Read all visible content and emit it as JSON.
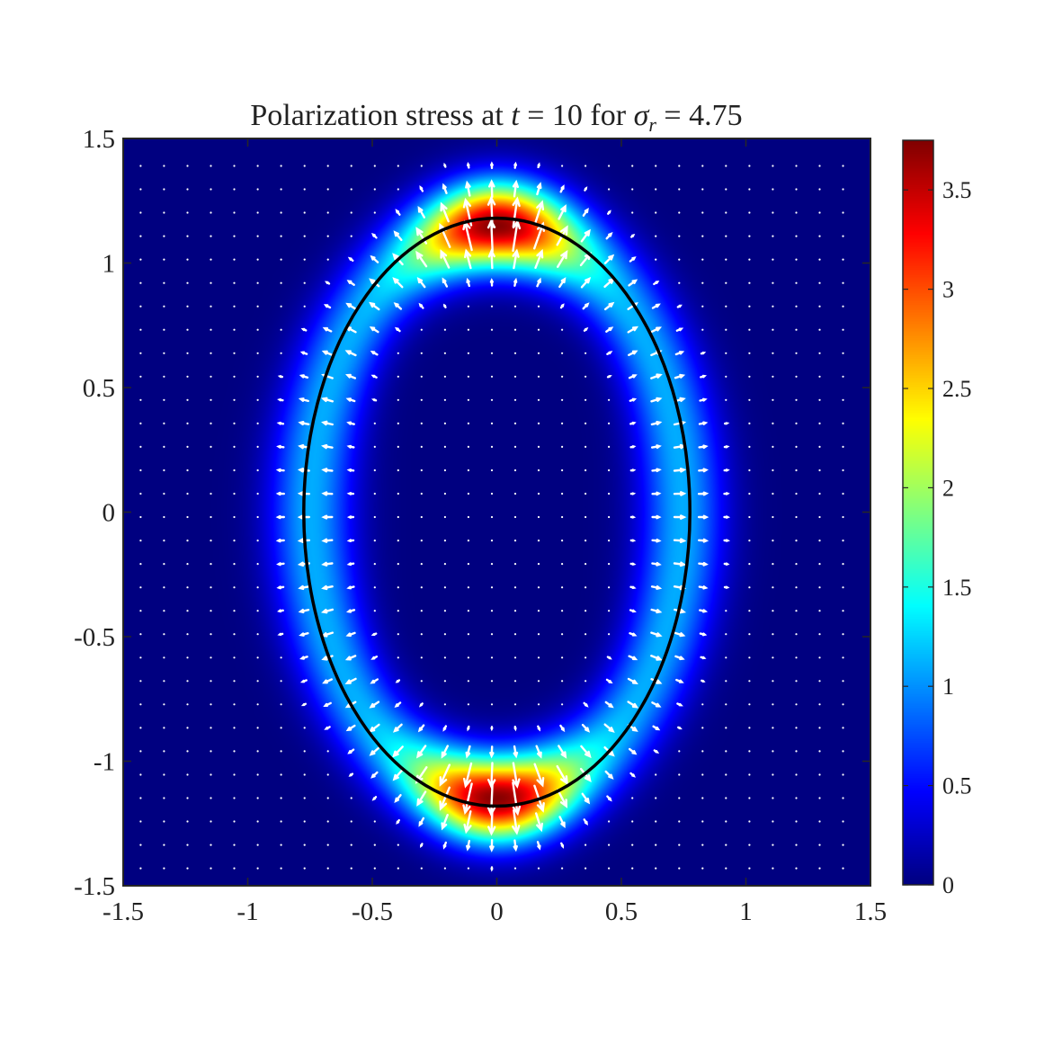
{
  "chart_data": {
    "type": "heatmap",
    "title": "Polarization stress at t = 10 for σr = 4.75",
    "title_parts": {
      "prefix": "Polarization stress at ",
      "t_var": "t",
      "t_eq": " = 10 for ",
      "sigma": "σ",
      "sigma_sub": "r",
      "sigma_eq": " = 4.75"
    },
    "xlabel": "",
    "ylabel": "",
    "xlim": [
      -1.5,
      1.5
    ],
    "ylim": [
      -1.5,
      1.5
    ],
    "xticks": [
      -1.5,
      -1,
      -0.5,
      0,
      0.5,
      1,
      1.5
    ],
    "xtick_labels": [
      "-1.5",
      "-1",
      "-0.5",
      "0",
      "0.5",
      "1",
      "1.5"
    ],
    "yticks": [
      -1.5,
      -1,
      -0.5,
      0,
      0.5,
      1,
      1.5
    ],
    "ytick_labels": [
      "-1.5",
      "-1",
      "-0.5",
      "0",
      "0.5",
      "1",
      "1.5"
    ],
    "colormap": "jet",
    "clim": [
      0,
      3.75
    ],
    "colorbar_ticks": [
      0,
      0.5,
      1,
      1.5,
      2,
      2.5,
      3,
      3.5
    ],
    "colorbar_labels": [
      "0",
      "0.5",
      "1",
      "1.5",
      "2",
      "2.5",
      "3",
      "3.5"
    ],
    "interface_ellipse": {
      "center": [
        0,
        0
      ],
      "semi_axis_x": 0.775,
      "semi_axis_y": 1.18,
      "color": "#000000"
    },
    "stress_field": {
      "band_width": 0.12,
      "peak_magnitude_poles": 3.72,
      "magnitude_equator": 1.1,
      "inside_shift": 0.03
    },
    "quiver": {
      "spacing": 0.094,
      "color": "#ffffff",
      "direction": "normal to interface, outward",
      "max_length": 0.13
    }
  }
}
